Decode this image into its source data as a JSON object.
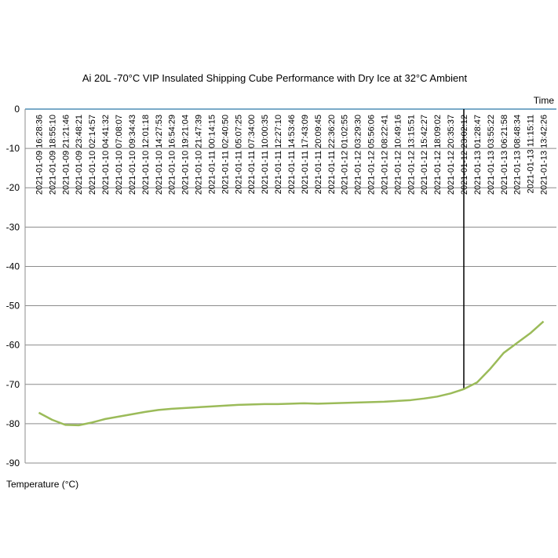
{
  "chart_data": {
    "type": "line",
    "title": "Ai 20L -70°C VIP Insulated Shipping Cube Performance with Dry Ice at 32°C Ambient",
    "x_label": "Time",
    "y_label": "Temperature (°C)",
    "categories": [
      "2021-01-09 16:28:36",
      "2021-01-09 18:55:10",
      "2021-01-09 21:21:46",
      "2021-01-09 23:48:21",
      "2021-01-10 02:14:57",
      "2021-01-10 04:41:32",
      "2021-01-10 07:08:07",
      "2021-01-10 09:34:43",
      "2021-01-10 12:01:18",
      "2021-01-10 14:27:53",
      "2021-01-10 16:54:29",
      "2021-01-10 19:21:04",
      "2021-01-10 21:47:39",
      "2021-01-11 00:14:15",
      "2021-01-11 02:40:50",
      "2021-01-11 05:07:25",
      "2021-01-11 07:34:00",
      "2021-01-11 10:00:35",
      "2021-01-11 12:27:10",
      "2021-01-11 14:53:46",
      "2021-01-11 17:43:09",
      "2021-01-11 20:09:45",
      "2021-01-11 22:36:20",
      "2021-01-12 01:02:55",
      "2021-01-12 03:29:30",
      "2021-01-12 05:56:06",
      "2021-01-12 08:22:41",
      "2021-01-12 10:49:16",
      "2021-01-12 13:15:51",
      "2021-01-12 15:42:27",
      "2021-01-12 18:09:02",
      "2021-01-12 20:35:37",
      "2021-01-12 23:02:12",
      "2021-01-13 01:28:47",
      "2021-01-13 03:55:22",
      "2021-01-13 06:21:58",
      "2021-01-13 08:48:34",
      "2021-01-13 11:15:11",
      "2021-01-13 13:42:26"
    ],
    "values": [
      -77.2,
      -79,
      -80.3,
      -80.4,
      -79.7,
      -78.8,
      -78.2,
      -77.6,
      -77.0,
      -76.5,
      -76.2,
      -76.0,
      -75.8,
      -75.6,
      -75.4,
      -75.2,
      -75.1,
      -75.0,
      -75.0,
      -74.9,
      -74.8,
      -74.9,
      -74.8,
      -74.7,
      -74.6,
      -74.5,
      -74.4,
      -74.2,
      -74.0,
      -73.6,
      -73.1,
      -72.3,
      -71.2,
      -69.5,
      -66,
      -62,
      -59.5,
      -57,
      -54
    ],
    "color": "#9bbb59",
    "vline_at": "2021-01-12 23:02:12",
    "ylim": [
      -90,
      0
    ],
    "yticks": [
      0,
      -10,
      -20,
      -30,
      -40,
      -50,
      -60,
      -70,
      -80,
      -90
    ],
    "grid": true
  }
}
